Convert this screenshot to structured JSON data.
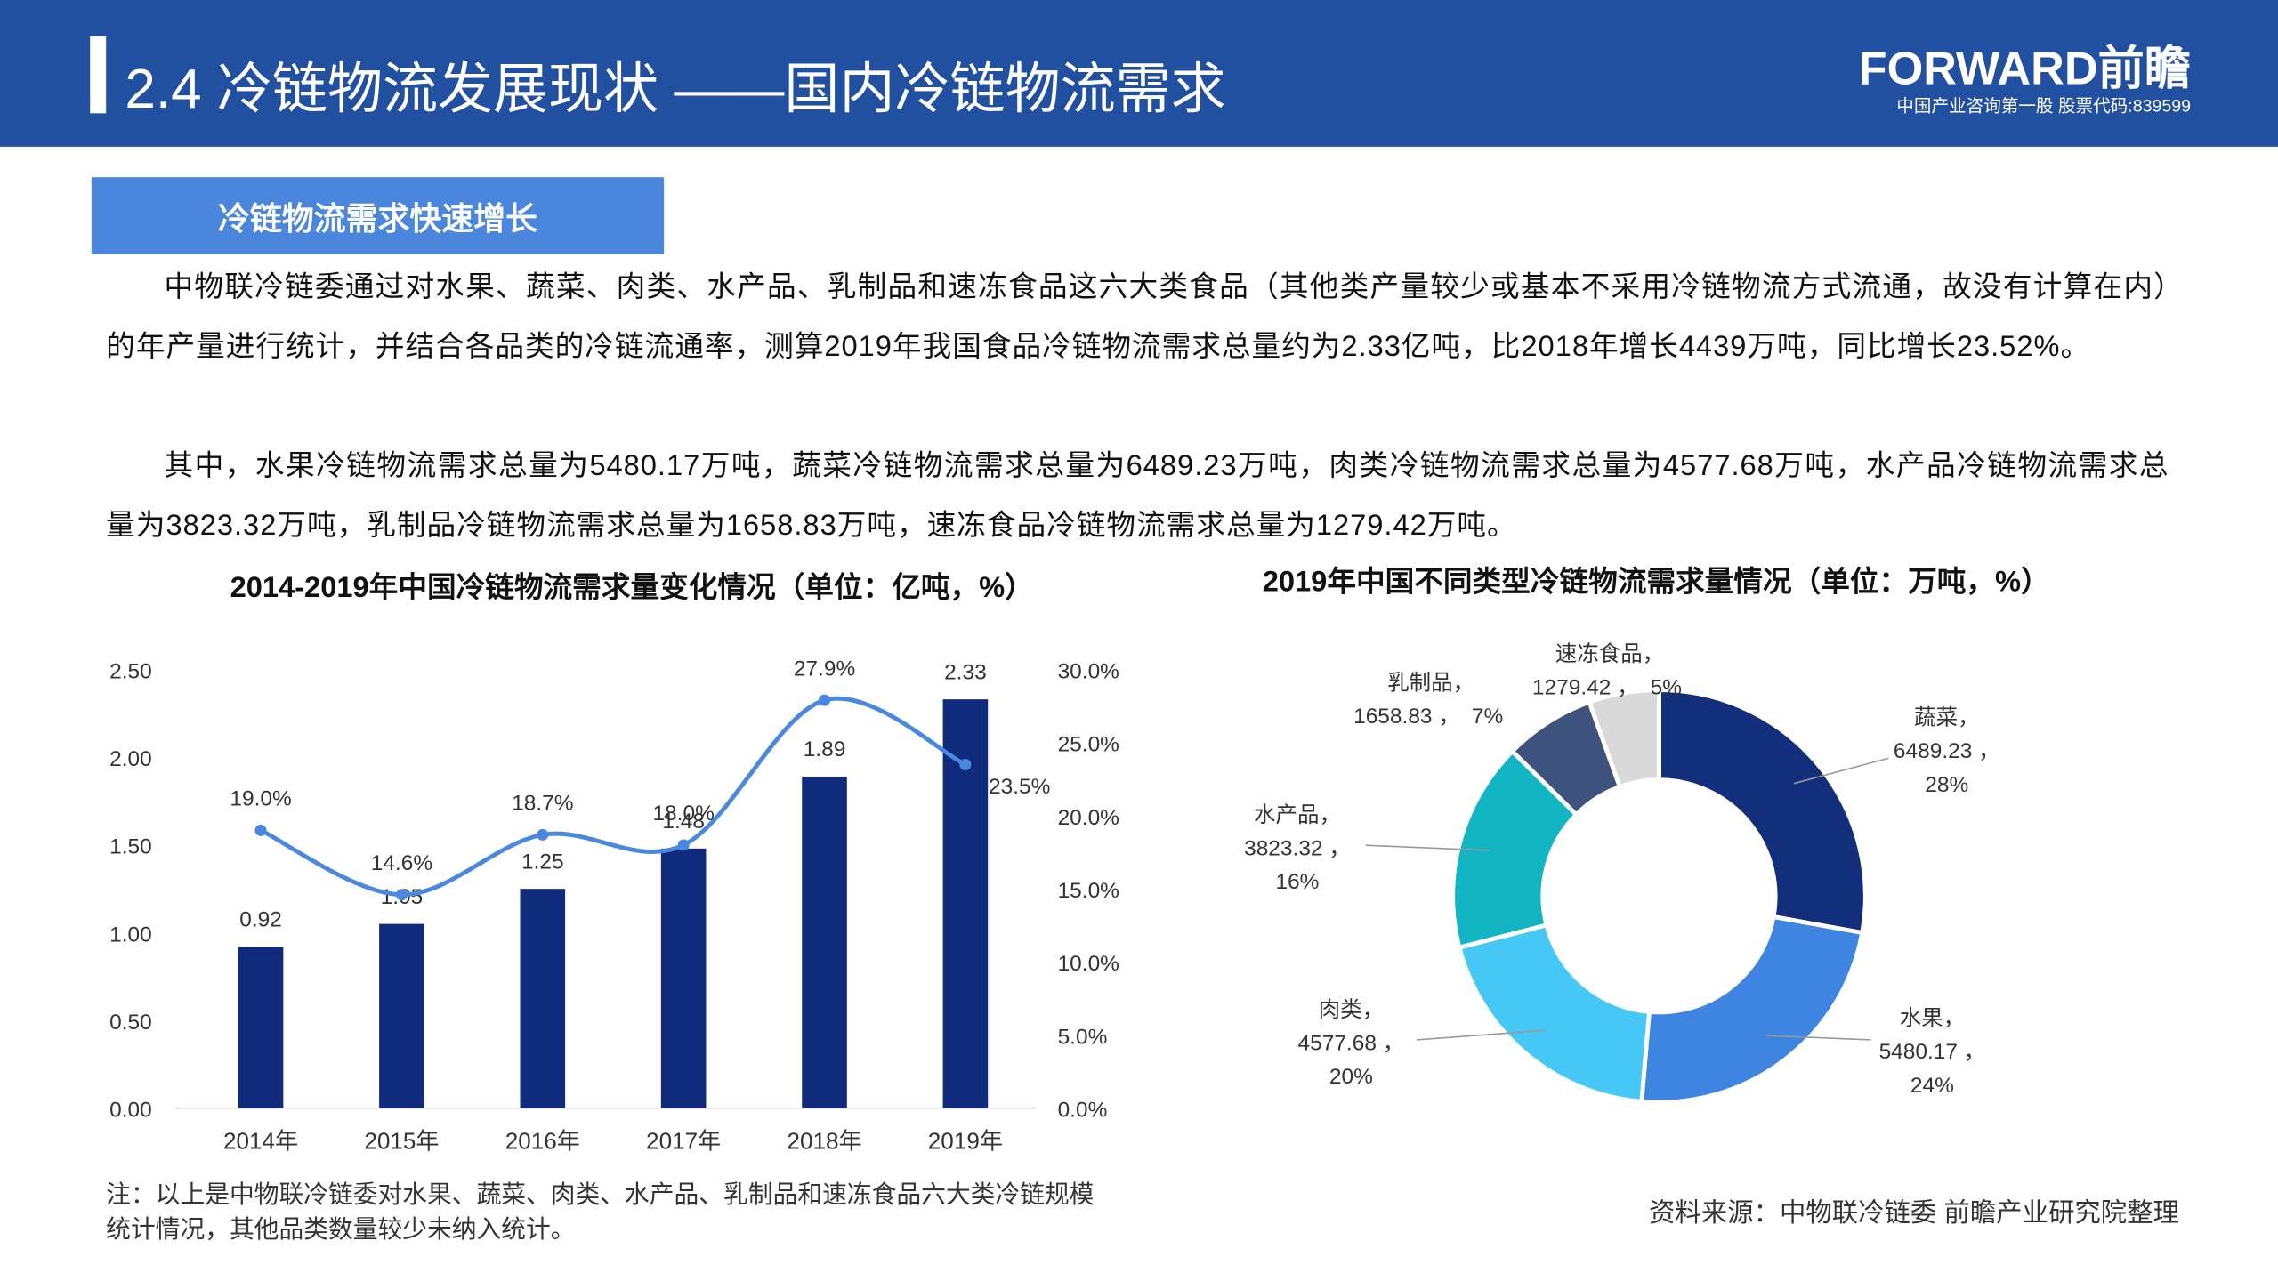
{
  "header": {
    "title": "2.4  冷链物流发展现状 ——国内冷链物流需求",
    "logo": "FORWARD前瞻",
    "tagline": "中国产业咨询第一股  股票代码:839599"
  },
  "section": {
    "label": "冷链物流需求快速增长",
    "paragraphs": [
      "中物联冷链委通过对水果、蔬菜、肉类、水产品、乳制品和速冻食品这六大类食品（其他类产量较少或基本不采用冷链物流方式流通，故没有计算在内）的年产量进行统计，并结合各品类的冷链流通率，测算2019年我国食品冷链物流需求总量约为2.33亿吨，比2018年增长4439万吨，同比增长23.52%。",
      "其中，水果冷链物流需求总量为5480.17万吨，蔬菜冷链物流需求总量为6489.23万吨，肉类冷链物流需求总量为4577.68万吨，水产品冷链物流需求总量为3823.32万吨，乳制品冷链物流需求总量为1658.83万吨，速冻食品冷链物流需求总量为1279.42万吨。"
    ]
  },
  "chart_data": [
    {
      "type": "combo",
      "title": "2014-2019年中国冷链物流需求量变化情况（单位：亿吨，%）",
      "categories": [
        "2014年",
        "2015年",
        "2016年",
        "2017年",
        "2018年",
        "2019年"
      ],
      "series": [
        {
          "type": "bar",
          "color": "#112b7c",
          "values": [
            0.92,
            1.05,
            1.25,
            1.48,
            1.89,
            2.33
          ]
        },
        {
          "type": "line",
          "axis": "y2",
          "color": "#4a88e0",
          "values": [
            19.0,
            14.6,
            18.7,
            18.0,
            27.9,
            23.5
          ],
          "value_labels": [
            "19.0%",
            "14.6%",
            "18.7%",
            "18.0%",
            "27.9%",
            "23.5%"
          ]
        }
      ],
      "ylim": [
        0,
        2.5
      ],
      "yticks": [
        {
          "value": 0,
          "label": "0.00"
        },
        {
          "value": 0.5,
          "label": "0.50"
        },
        {
          "value": 1,
          "label": "1.00"
        },
        {
          "value": 1.5,
          "label": "1.50"
        },
        {
          "value": 2,
          "label": "2.00"
        },
        {
          "value": 2.5,
          "label": "2.50"
        }
      ],
      "y2lim": [
        0,
        30
      ],
      "y2ticks": [
        {
          "value": 0,
          "label": "0.0%"
        },
        {
          "value": 5,
          "label": "5.0%"
        },
        {
          "value": 10,
          "label": "10.0%"
        },
        {
          "value": 15,
          "label": "15.0%"
        },
        {
          "value": 20,
          "label": "20.0%"
        },
        {
          "value": 25,
          "label": "25.0%"
        },
        {
          "value": 30,
          "label": "30.0%"
        }
      ]
    },
    {
      "type": "donut",
      "title": "2019年中国不同类型冷链物流需求量情况（单位：万吨，%）",
      "categories": [
        "蔬菜，",
        "水果，",
        "肉类，",
        "水产品，",
        "乳制品，",
        "速冻食品，"
      ],
      "values": [
        6489.23,
        5480.17,
        4577.68,
        3823.32,
        1658.83,
        1279.42
      ],
      "value_labels": [
        "6489.23 ，",
        "5480.17 ，",
        "4577.68 ，",
        "3823.32 ，",
        "1658.83 ，",
        "1279.42 ，"
      ],
      "shares": [
        28,
        24,
        20,
        16,
        7,
        5
      ],
      "share_labels": [
        "28%",
        "24%",
        "20%",
        "16%",
        "7%",
        "5%"
      ],
      "colors": [
        "#132e7a",
        "#3d85e0",
        "#45c8f5",
        "#12b5c4",
        "#3e527e",
        "#d9d9d9"
      ]
    }
  ],
  "note": "注：以上是中物联冷链委对水果、蔬菜、肉类、水产品、乳制品和速冻食品六大类冷链规模统计情况，其他品类数量较少未纳入统计。",
  "source": "资料来源：中物联冷链委 前瞻产业研究院整理"
}
